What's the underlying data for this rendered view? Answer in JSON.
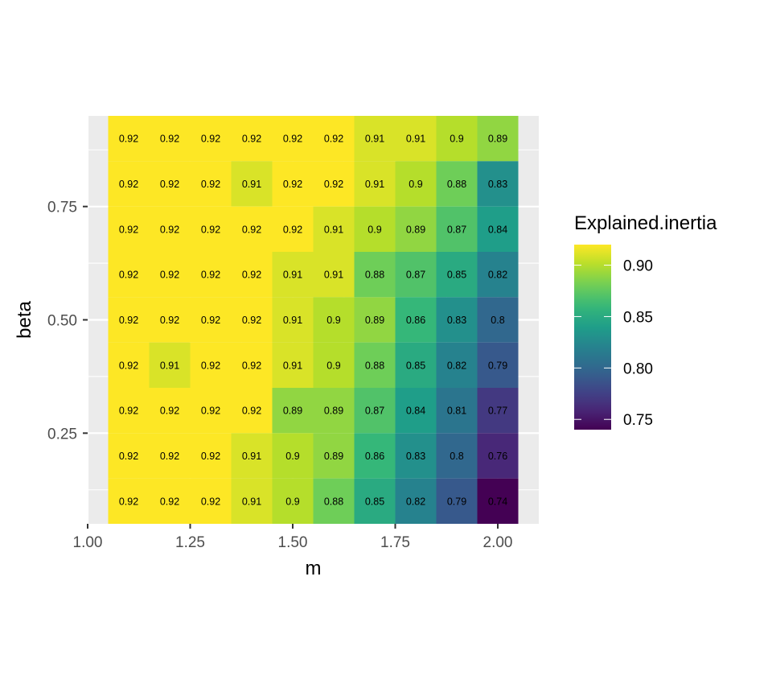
{
  "chart_data": {
    "type": "heatmap",
    "title": "",
    "xlabel": "m",
    "ylabel": "beta",
    "x": [
      1.1,
      1.2,
      1.3,
      1.4,
      1.5,
      1.6,
      1.7,
      1.8,
      1.9,
      2.0
    ],
    "y": [
      0.9,
      0.8,
      0.7,
      0.6,
      0.5,
      0.4,
      0.3,
      0.2,
      0.1
    ],
    "xlim": [
      1.0,
      2.1
    ],
    "ylim": [
      0.05,
      0.95
    ],
    "x_ticks": [
      "1.00",
      "1.25",
      "1.50",
      "1.75",
      "2.00"
    ],
    "y_ticks": [
      "0.25",
      "0.50",
      "0.75"
    ],
    "values": [
      [
        0.92,
        0.92,
        0.92,
        0.92,
        0.92,
        0.92,
        0.91,
        0.91,
        0.9,
        0.89
      ],
      [
        0.92,
        0.92,
        0.92,
        0.91,
        0.92,
        0.92,
        0.91,
        0.9,
        0.88,
        0.83
      ],
      [
        0.92,
        0.92,
        0.92,
        0.92,
        0.92,
        0.91,
        0.9,
        0.89,
        0.87,
        0.84
      ],
      [
        0.92,
        0.92,
        0.92,
        0.92,
        0.91,
        0.91,
        0.88,
        0.87,
        0.85,
        0.82
      ],
      [
        0.92,
        0.92,
        0.92,
        0.92,
        0.91,
        0.9,
        0.89,
        0.86,
        0.83,
        0.8
      ],
      [
        0.92,
        0.91,
        0.92,
        0.92,
        0.91,
        0.9,
        0.88,
        0.85,
        0.82,
        0.79
      ],
      [
        0.92,
        0.92,
        0.92,
        0.92,
        0.89,
        0.89,
        0.87,
        0.84,
        0.81,
        0.77
      ],
      [
        0.92,
        0.92,
        0.92,
        0.91,
        0.9,
        0.89,
        0.86,
        0.83,
        0.8,
        0.76
      ],
      [
        0.92,
        0.92,
        0.92,
        0.91,
        0.9,
        0.88,
        0.85,
        0.82,
        0.79,
        0.74
      ]
    ],
    "colorscale": "viridis",
    "color_range": [
      0.74,
      0.92
    ],
    "legend": {
      "title": "Explained.inertia",
      "ticks": [
        "0.90",
        "0.85",
        "0.80",
        "0.75"
      ],
      "placement": "right"
    },
    "grid": true,
    "panel_background": "#EBEBEB",
    "grid_color": "#FFFFFF"
  }
}
